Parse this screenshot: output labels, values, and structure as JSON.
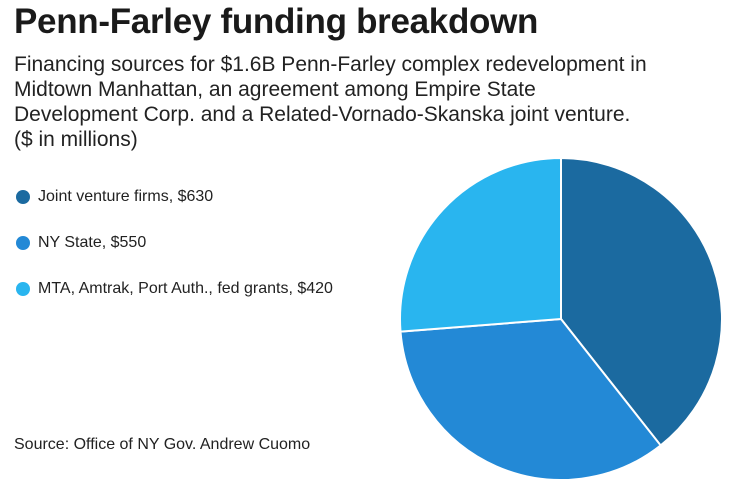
{
  "chart_data": {
    "type": "pie",
    "title": "Penn-Farley funding breakdown",
    "subtitle": "Financing sources for $1.6B Penn-Farley complex redevelopment in Midtown Manhattan, an agreement among Empire State Development Corp. and a Related-Vornado-Skanska joint venture. ($ in millions)",
    "categories": [
      "Joint venture firms",
      "NY State",
      "MTA, Amtrak, Port Auth., fed grants"
    ],
    "values": [
      630,
      550,
      420
    ],
    "units": "$ in millions",
    "legend_labels": [
      "Joint venture firms, $630",
      "NY State, $550",
      "MTA, Amtrak, Port Auth., fed grants, $420"
    ],
    "colors": [
      "#1b6aa0",
      "#2389d6",
      "#29b5ef"
    ],
    "legend_position": "left",
    "source": "Source: Office of NY Gov. Andrew Cuomo"
  }
}
